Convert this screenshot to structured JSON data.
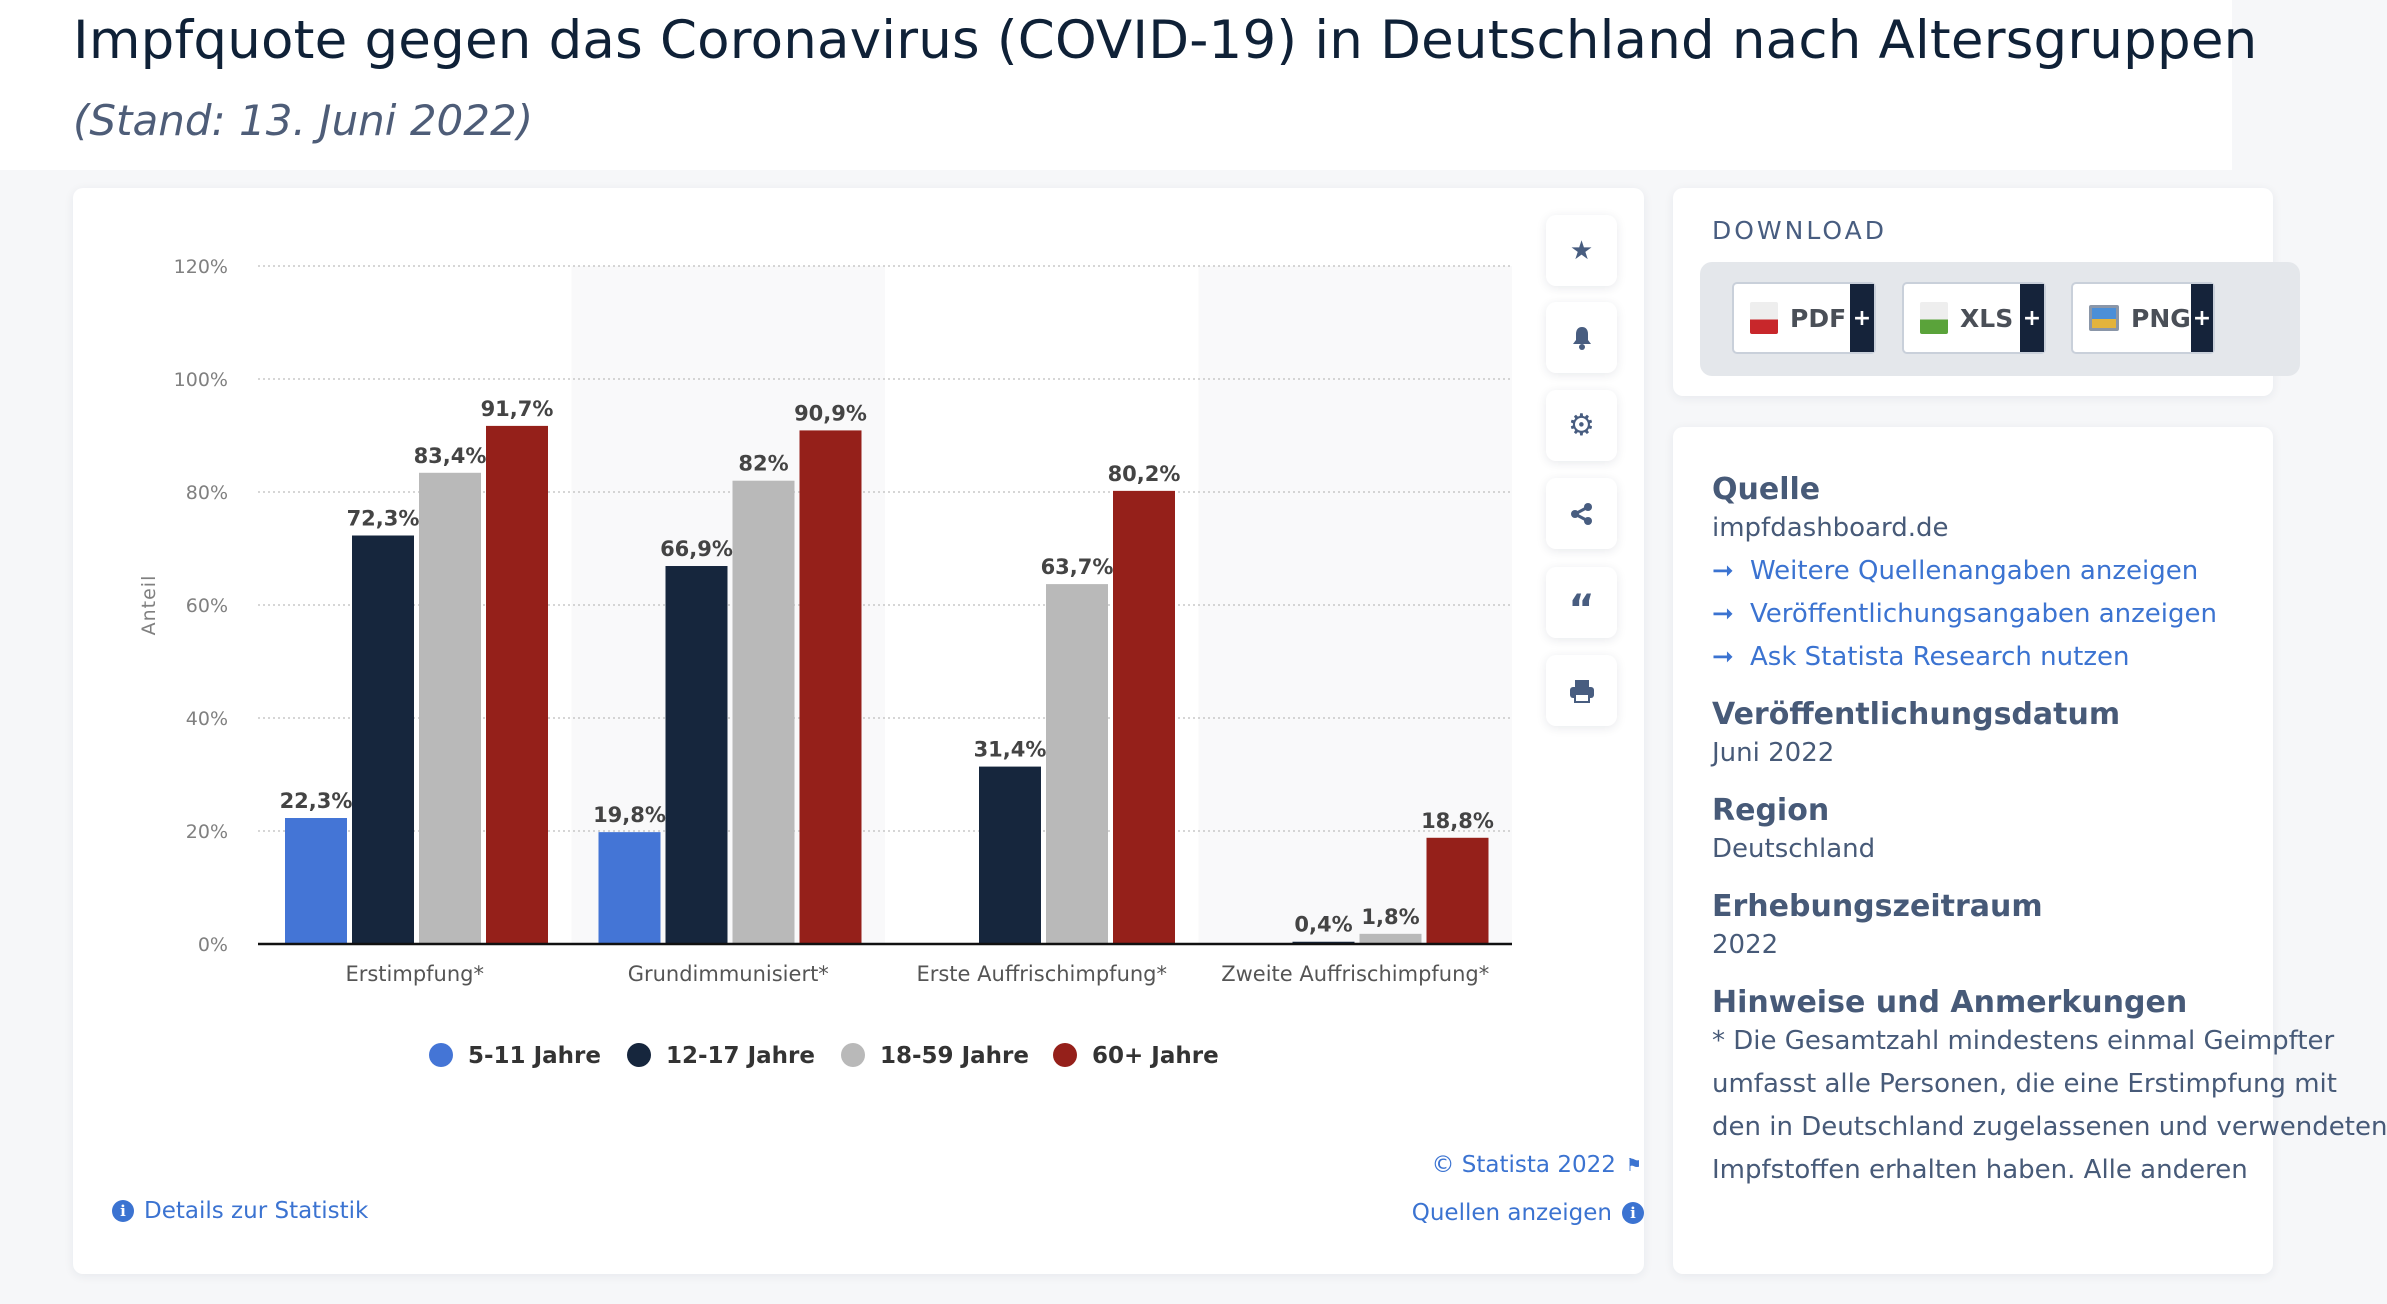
{
  "header": {
    "title": "Impfquote gegen das Coronavirus (COVID-19) in Deutschland nach Altersgruppen",
    "subtitle": "(Stand: 13. Juni 2022)"
  },
  "chart_data": {
    "type": "bar",
    "title": "",
    "xlabel": "",
    "ylabel": "Anteil",
    "ylim": [
      0,
      120
    ],
    "yticks": [
      0,
      20,
      40,
      60,
      80,
      100,
      120
    ],
    "ytick_labels": [
      "0%",
      "20%",
      "40%",
      "60%",
      "80%",
      "100%",
      "120%"
    ],
    "grid": true,
    "legend_position": "bottom",
    "categories": [
      "Erstimpfung*",
      "Grundimmunisiert*",
      "Erste Auffrischimpfung*",
      "Zweite Auffrischimpfung*"
    ],
    "series": [
      {
        "name": "5-11 Jahre",
        "color": "#4475d6",
        "values": [
          22.3,
          19.8,
          null,
          null
        ],
        "labels": [
          "22,3%",
          "19,8%",
          "",
          ""
        ]
      },
      {
        "name": "12-17 Jahre",
        "color": "#16263d",
        "values": [
          72.3,
          66.9,
          31.4,
          0.4
        ],
        "labels": [
          "72,3%",
          "66,9%",
          "31,4%",
          "0,4%"
        ]
      },
      {
        "name": "18-59 Jahre",
        "color": "#b9b9b9",
        "values": [
          83.4,
          82,
          63.7,
          1.8
        ],
        "labels": [
          "83,4%",
          "82%",
          "63,7%",
          "1,8%"
        ]
      },
      {
        "name": "60+ Jahre",
        "color": "#95201a",
        "values": [
          91.7,
          90.9,
          80.2,
          18.8
        ],
        "labels": [
          "91,7%",
          "90,9%",
          "80,2%",
          "18,8%"
        ]
      }
    ]
  },
  "toolbar": {
    "icons": [
      "star-icon",
      "bell-icon",
      "gear-icon",
      "share-icon",
      "quote-icon",
      "print-icon"
    ]
  },
  "footer": {
    "copyright": "© Statista 2022",
    "sources": "Quellen anzeigen",
    "details": "Details zur Statistik"
  },
  "download": {
    "label": "DOWNLOAD",
    "buttons": [
      {
        "label": "PDF",
        "plus": "+"
      },
      {
        "label": "XLS",
        "plus": "+"
      },
      {
        "label": "PNG",
        "plus": "+"
      }
    ]
  },
  "info": {
    "source_heading": "Quelle",
    "source_value": "impfdashboard.de",
    "links": [
      "Weitere Quellenangaben anzeigen",
      "Veröffentlichungsangaben anzeigen",
      "Ask Statista Research nutzen"
    ],
    "pub_heading": "Veröffentlichungsdatum",
    "pub_value": "Juni 2022",
    "region_heading": "Region",
    "region_value": "Deutschland",
    "period_heading": "Erhebungszeitraum",
    "period_value": "2022",
    "notes_heading": "Hinweise und Anmerkungen",
    "notes_lines": [
      "* Die Gesamtzahl mindestens einmal Geimpfter",
      "umfasst alle Personen, die eine Erstimpfung mit",
      "den in Deutschland zugelassenen und verwendeten",
      "Impfstoffen erhalten haben. Alle anderen"
    ]
  }
}
